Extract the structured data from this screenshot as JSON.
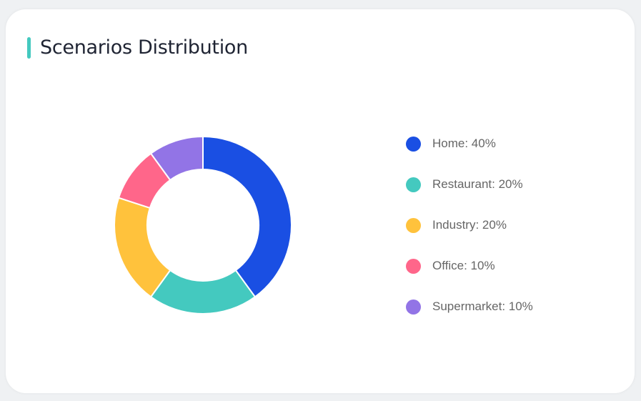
{
  "title": "Scenarios Distribution",
  "chart_data": {
    "type": "pie",
    "variant": "donut",
    "title": "Scenarios Distribution",
    "legend_position": "right",
    "slices": [
      {
        "label": "Home",
        "value": 40,
        "display": "Home: 40%",
        "color": "#1a4fe3"
      },
      {
        "label": "Restaurant",
        "value": 20,
        "display": "Restaurant: 20%",
        "color": "#44c9bf"
      },
      {
        "label": "Industry",
        "value": 20,
        "display": "Industry: 20%",
        "color": "#ffc23c"
      },
      {
        "label": "Office",
        "value": 10,
        "display": "Office: 10%",
        "color": "#ff668a"
      },
      {
        "label": "Supermarket",
        "value": 10,
        "display": "Supermarket: 10%",
        "color": "#9274e6"
      }
    ]
  }
}
